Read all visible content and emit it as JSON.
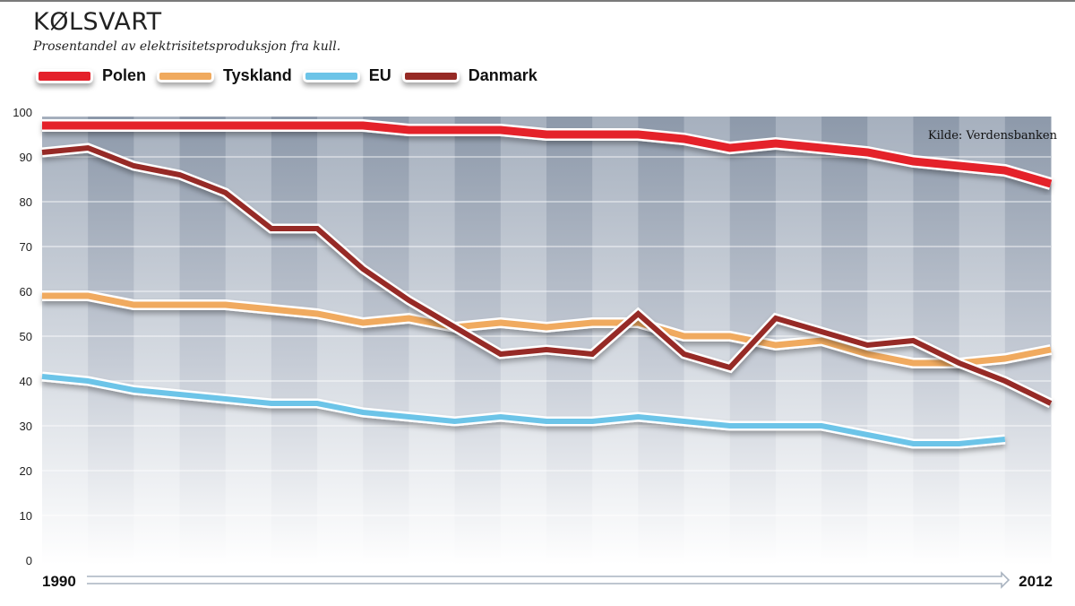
{
  "title": "KØLSVART",
  "subtitle": "Prosentandel av elektrisitetsproduksjon fra kull.",
  "source": "Kilde: Verdensbanken",
  "chart_data": {
    "type": "line",
    "title": "KØLSVART",
    "subtitle": "Prosentandel av elektrisitetsproduksjon fra kull.",
    "xlabel": "",
    "ylabel": "",
    "x": [
      1990,
      1991,
      1992,
      1993,
      1994,
      1995,
      1996,
      1997,
      1998,
      1999,
      2000,
      2001,
      2002,
      2003,
      2004,
      2005,
      2006,
      2007,
      2008,
      2009,
      2010,
      2011,
      2012
    ],
    "x_tick_labels": [
      "1990",
      "2012"
    ],
    "ylim": [
      0,
      100
    ],
    "y_ticks": [
      0,
      10,
      20,
      30,
      40,
      50,
      60,
      70,
      80,
      90,
      100
    ],
    "grid": true,
    "legend": "top-left",
    "series": [
      {
        "name": "Polen",
        "color": "#e4202a",
        "values": [
          97,
          97,
          97,
          97,
          97,
          97,
          97,
          97,
          96,
          96,
          96,
          95,
          95,
          95,
          94,
          92,
          93,
          92,
          91,
          89,
          88,
          87,
          84
        ]
      },
      {
        "name": "Tyskland",
        "color": "#f0aa5e",
        "values": [
          59,
          59,
          57,
          57,
          57,
          56,
          55,
          53,
          54,
          52,
          53,
          52,
          53,
          53,
          50,
          50,
          48,
          49,
          46,
          44,
          44,
          45,
          47
        ]
      },
      {
        "name": "EU",
        "color": "#6cc4e8",
        "values": [
          41,
          40,
          38,
          37,
          36,
          35,
          35,
          33,
          32,
          31,
          32,
          31,
          31,
          32,
          31,
          30,
          30,
          30,
          28,
          26,
          26,
          27,
          null
        ]
      },
      {
        "name": "Danmark",
        "color": "#962a25",
        "values": [
          91,
          92,
          88,
          86,
          82,
          74,
          74,
          65,
          58,
          52,
          46,
          47,
          46,
          55,
          46,
          43,
          54,
          51,
          48,
          49,
          44,
          40,
          35
        ]
      }
    ]
  }
}
